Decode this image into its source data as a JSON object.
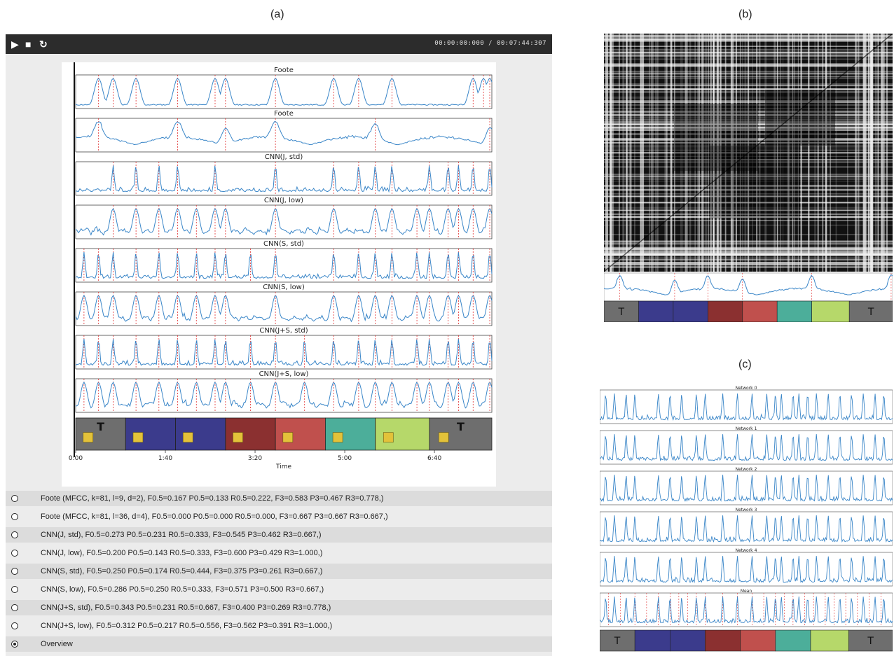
{
  "panels": {
    "a": "(a)",
    "b": "(b)",
    "c": "(c)"
  },
  "toolbar": {
    "play_icon": "play-icon",
    "stop_icon": "stop-icon",
    "reload_icon": "reload-icon",
    "time_display": "00:00:00:000 / 00:07:44:307"
  },
  "plots": [
    {
      "title": "Foote",
      "style": "smooth",
      "seed": 11,
      "markers": [
        0.055,
        0.09,
        0.145,
        0.245,
        0.335,
        0.36,
        0.48,
        0.62,
        0.68,
        0.76,
        0.955,
        0.98,
        0.995
      ]
    },
    {
      "title": "Foote",
      "style": "smooth2",
      "seed": 23,
      "markers": [
        0.055,
        0.245,
        0.36,
        0.48,
        0.72,
        0.995
      ]
    },
    {
      "title": "CNN(J, std)",
      "style": "spiky",
      "seed": 31,
      "markers": [
        0.09,
        0.145,
        0.2,
        0.245,
        0.335,
        0.48,
        0.62,
        0.68,
        0.72,
        0.76,
        0.85,
        0.895,
        0.92,
        0.955,
        0.995
      ]
    },
    {
      "title": "CNN(J, low)",
      "style": "bumpy",
      "seed": 37,
      "markers": [
        0.09,
        0.145,
        0.2,
        0.245,
        0.29,
        0.335,
        0.36,
        0.48,
        0.62,
        0.72,
        0.76,
        0.82,
        0.85,
        0.895,
        0.92,
        0.955,
        0.995
      ]
    },
    {
      "title": "CNN(S, std)",
      "style": "spiky",
      "seed": 41,
      "markers": [
        0.02,
        0.055,
        0.09,
        0.145,
        0.2,
        0.245,
        0.29,
        0.335,
        0.36,
        0.42,
        0.48,
        0.62,
        0.68,
        0.72,
        0.76,
        0.82,
        0.85,
        0.895,
        0.92,
        0.955,
        0.995
      ]
    },
    {
      "title": "CNN(S, low)",
      "style": "bumpy",
      "seed": 47,
      "markers": [
        0.02,
        0.055,
        0.09,
        0.145,
        0.2,
        0.245,
        0.29,
        0.335,
        0.36,
        0.48,
        0.62,
        0.68,
        0.72,
        0.76,
        0.82,
        0.85,
        0.895,
        0.92,
        0.955,
        0.995
      ]
    },
    {
      "title": "CNN(J+S, std)",
      "style": "spiky",
      "seed": 53,
      "markers": [
        0.02,
        0.055,
        0.09,
        0.145,
        0.2,
        0.245,
        0.29,
        0.335,
        0.36,
        0.42,
        0.48,
        0.55,
        0.62,
        0.68,
        0.72,
        0.76,
        0.82,
        0.85,
        0.895,
        0.92,
        0.955,
        0.995
      ]
    },
    {
      "title": "CNN(J+S, low)",
      "style": "bumpy",
      "seed": 59,
      "markers": [
        0.02,
        0.055,
        0.09,
        0.145,
        0.2,
        0.245,
        0.29,
        0.335,
        0.36,
        0.42,
        0.48,
        0.55,
        0.62,
        0.68,
        0.72,
        0.76,
        0.82,
        0.85,
        0.895,
        0.92,
        0.955,
        0.995
      ]
    }
  ],
  "time_axis": {
    "label": "Time",
    "ticks": [
      "0:00",
      "1:40",
      "3:20",
      "5:00",
      "6:40"
    ],
    "tick_positions": [
      0,
      100,
      200,
      300,
      400
    ],
    "max": 464
  },
  "segment_bar": [
    {
      "label": "T",
      "color": "#6e6e6e",
      "span": [
        0,
        0.12
      ]
    },
    {
      "label": "",
      "color": "#3b3b8c",
      "span": [
        0.12,
        0.24
      ]
    },
    {
      "label": "",
      "color": "#3b3b8c",
      "span": [
        0.24,
        0.36
      ]
    },
    {
      "label": "",
      "color": "#8b3030",
      "span": [
        0.36,
        0.48
      ]
    },
    {
      "label": "",
      "color": "#c0504d",
      "span": [
        0.48,
        0.6
      ]
    },
    {
      "label": "",
      "color": "#4cae9a",
      "span": [
        0.6,
        0.72
      ]
    },
    {
      "label": "",
      "color": "#b6d86a",
      "span": [
        0.72,
        0.85
      ]
    },
    {
      "label": "T",
      "color": "#6e6e6e",
      "span": [
        0.85,
        1.0
      ]
    }
  ],
  "legend": [
    {
      "text": "Foote (MFCC, k=81, l=9, d=2), F0.5=0.167 P0.5=0.133 R0.5=0.222, F3=0.583 P3=0.467 R3=0.778,)",
      "selected": false
    },
    {
      "text": "Foote (MFCC, k=81, l=36, d=4), F0.5=0.000 P0.5=0.000 R0.5=0.000, F3=0.667 P3=0.667 R3=0.667,)",
      "selected": false
    },
    {
      "text": "CNN(J, std), F0.5=0.273 P0.5=0.231 R0.5=0.333, F3=0.545 P3=0.462 R3=0.667,)",
      "selected": false
    },
    {
      "text": "CNN(J, low), F0.5=0.200 P0.5=0.143 R0.5=0.333, F3=0.600 P3=0.429 R3=1.000,)",
      "selected": false
    },
    {
      "text": "CNN(S, std), F0.5=0.250 P0.5=0.174 R0.5=0.444, F3=0.375 P3=0.261 R3=0.667,)",
      "selected": false
    },
    {
      "text": "CNN(S, low), F0.5=0.286 P0.5=0.250 R0.5=0.333, F3=0.571 P3=0.500 R3=0.667,)",
      "selected": false
    },
    {
      "text": "CNN(J+S, std), F0.5=0.343 P0.5=0.231 R0.5=0.667, F3=0.400 P3=0.269 R3=0.778,)",
      "selected": false
    },
    {
      "text": "CNN(J+S, low), F0.5=0.312 P0.5=0.217 R0.5=0.556, F3=0.562 P3=0.391 R3=1.000,)",
      "selected": false
    },
    {
      "text": "Overview",
      "selected": true
    }
  ],
  "network_plots": [
    {
      "title": "Network 0",
      "seed": 71,
      "markers": []
    },
    {
      "title": "Network 1",
      "seed": 73,
      "markers": []
    },
    {
      "title": "Network 2",
      "seed": 79,
      "markers": []
    },
    {
      "title": "Network 3",
      "seed": 83,
      "markers": []
    },
    {
      "title": "Network 4",
      "seed": 89,
      "markers": []
    },
    {
      "title": "Mean",
      "seed": 97,
      "markers": [
        0.03,
        0.07,
        0.12,
        0.16,
        0.2,
        0.24,
        0.27,
        0.3,
        0.33,
        0.36,
        0.42,
        0.47,
        0.52,
        0.56,
        0.6,
        0.63,
        0.66,
        0.7,
        0.73,
        0.77,
        0.8,
        0.84,
        0.88,
        0.92,
        0.96
      ]
    }
  ],
  "bottom_bar": [
    {
      "label": "T",
      "color": "#6e6e6e",
      "span": [
        0,
        0.12
      ]
    },
    {
      "label": "",
      "color": "#3b3b8c",
      "span": [
        0.12,
        0.24
      ]
    },
    {
      "label": "",
      "color": "#3b3b8c",
      "span": [
        0.24,
        0.36
      ]
    },
    {
      "label": "",
      "color": "#8b3030",
      "span": [
        0.36,
        0.48
      ]
    },
    {
      "label": "",
      "color": "#c0504d",
      "span": [
        0.48,
        0.6
      ]
    },
    {
      "label": "",
      "color": "#4cae9a",
      "span": [
        0.6,
        0.72
      ]
    },
    {
      "label": "",
      "color": "#b6d86a",
      "span": [
        0.72,
        0.85
      ]
    },
    {
      "label": "T",
      "color": "#6e6e6e",
      "span": [
        0.85,
        1.0
      ]
    }
  ],
  "colors": {
    "line": "#3a86c8",
    "marker": "#e03030",
    "toolbar": "#2c2c2c"
  }
}
